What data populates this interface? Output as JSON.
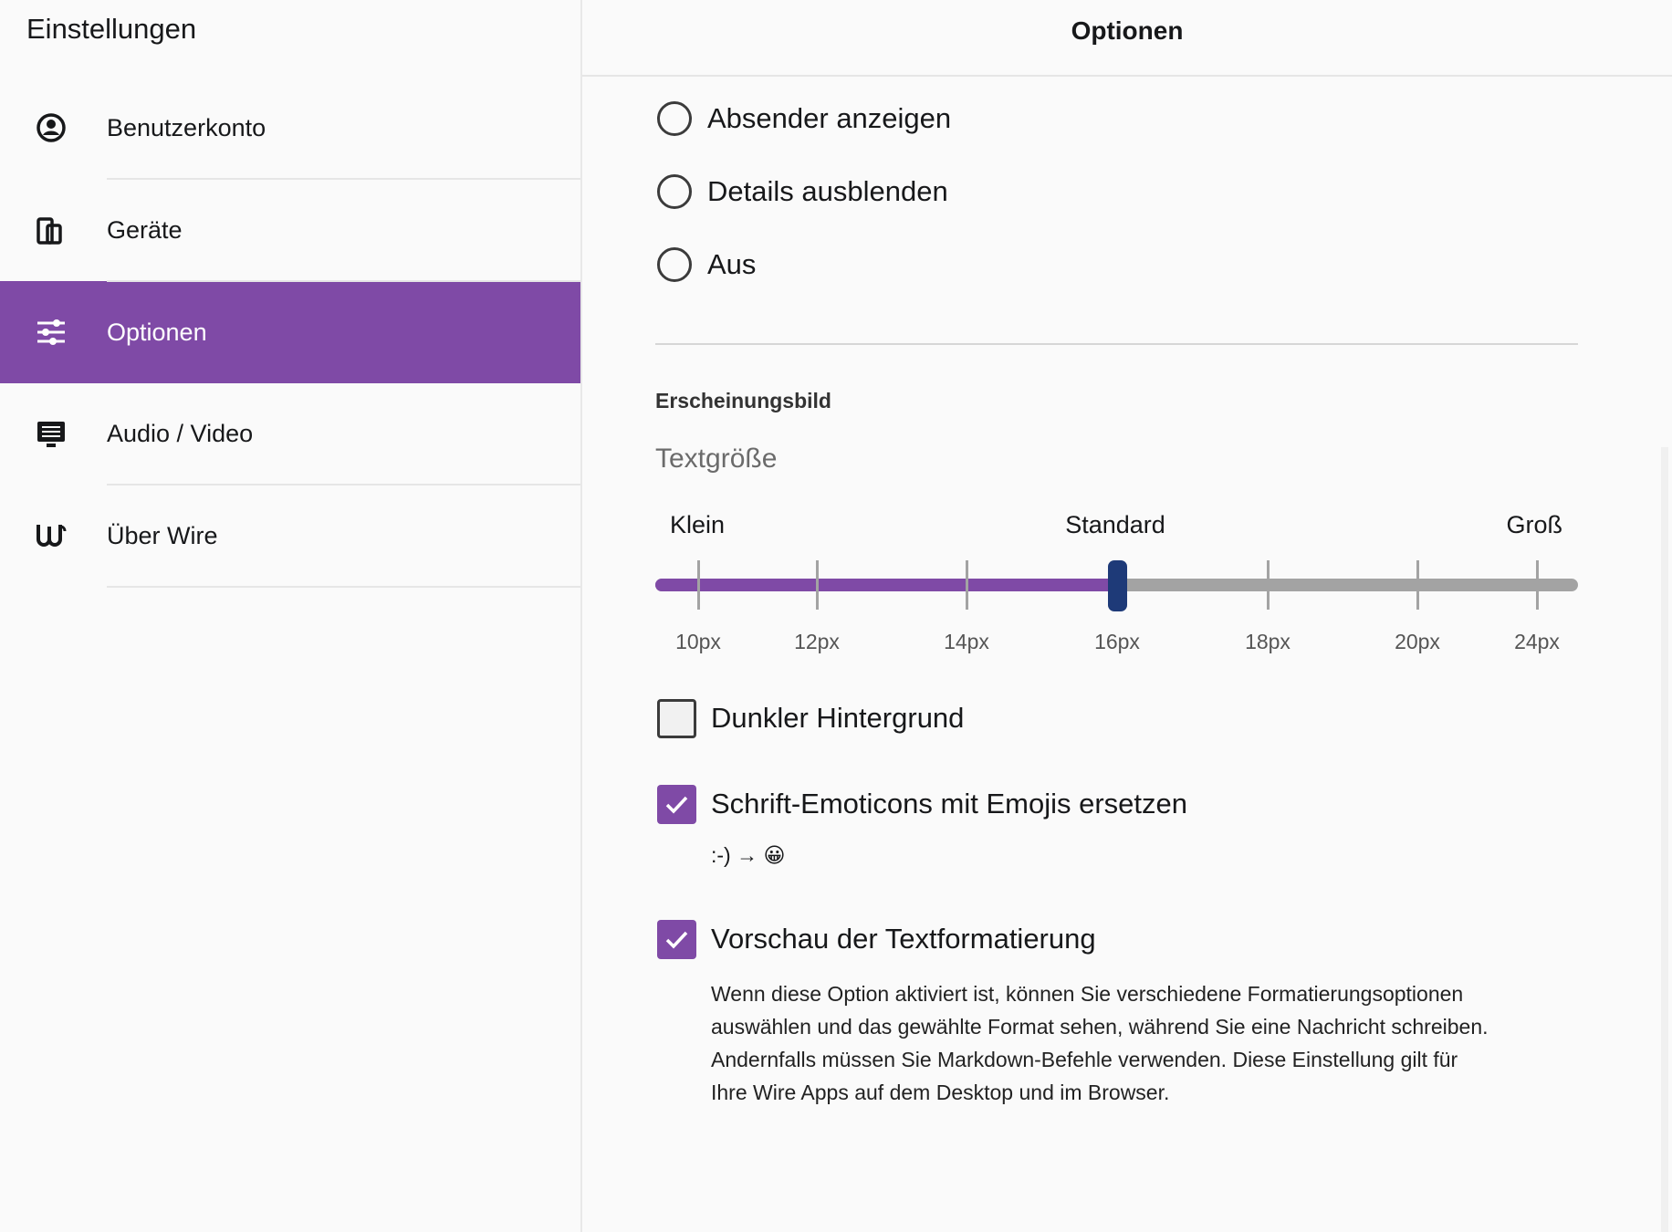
{
  "sidebar": {
    "title": "Einstellungen",
    "items": [
      {
        "label": "Benutzerkonto",
        "active": false
      },
      {
        "label": "Geräte",
        "active": false
      },
      {
        "label": "Optionen",
        "active": true
      },
      {
        "label": "Audio / Video",
        "active": false
      },
      {
        "label": "Über Wire",
        "active": false
      }
    ]
  },
  "header": {
    "title": "Optionen"
  },
  "radios": [
    "Absender anzeigen",
    "Details ausblenden",
    "Aus"
  ],
  "appearance": {
    "title": "Erscheinungsbild",
    "label": "Textgröße",
    "slider_labels": [
      "Klein",
      "Standard",
      "Groß"
    ],
    "ticks": [
      "10px",
      "12px",
      "14px",
      "16px",
      "18px",
      "20px",
      "24px"
    ]
  },
  "checkboxes": [
    {
      "label": "Dunkler Hintergrund",
      "checked": false
    },
    {
      "label": "Schrift-Emoticons mit Emojis ersetzen",
      "checked": true,
      "hint": ":-) → 😀"
    },
    {
      "label": "Vorschau der Textformatierung",
      "checked": true,
      "description": [
        "Wenn diese Option aktiviert ist, können Sie verschiedene Formatierungsoptionen",
        "auswählen und das gewählte Format sehen, während Sie eine Nachricht schreiben.",
        "Andernfalls müssen Sie Markdown-Befehle verwenden. Diese Einstellung gilt für",
        "Ihre Wire Apps auf dem Desktop und im Browser."
      ]
    }
  ]
}
